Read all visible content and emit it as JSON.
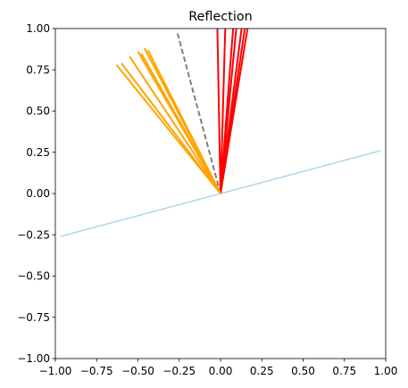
{
  "chart_data": {
    "type": "line",
    "title": "Reflection",
    "xlabel": "",
    "ylabel": "",
    "xlim": [
      -1.0,
      1.0
    ],
    "ylim": [
      -1.0,
      1.0
    ],
    "x_ticks": [
      -1.0,
      -0.75,
      -0.5,
      -0.25,
      0.0,
      0.25,
      0.5,
      0.75,
      1.0
    ],
    "y_ticks": [
      -1.0,
      -0.75,
      -0.5,
      -0.25,
      0.0,
      0.25,
      0.5,
      0.75,
      1.0
    ],
    "x_tick_labels": [
      "−1.00",
      "−0.75",
      "−0.50",
      "−0.25",
      "0.00",
      "0.25",
      "0.50",
      "0.75",
      "1.00"
    ],
    "y_tick_labels": [
      "−1.00",
      "−0.75",
      "−0.50",
      "−0.25",
      "0.00",
      "0.25",
      "0.50",
      "0.75",
      "1.00"
    ],
    "grid": false,
    "legend": false,
    "series": [
      {
        "role": "mirror",
        "color": "#add8e6",
        "dash": "solid",
        "segments": [
          {
            "x": [
              -0.97,
              0.97
            ],
            "y": [
              -0.26,
              0.26
            ]
          }
        ]
      },
      {
        "role": "normal",
        "color": "#808080",
        "dash": "dashed",
        "segments": [
          {
            "x": [
              0.0,
              -0.26
            ],
            "y": [
              0.0,
              0.97
            ]
          }
        ]
      },
      {
        "role": "incident",
        "color": "#ff0000",
        "dash": "solid",
        "segments": [
          {
            "x": [
              0.0,
              -0.02
            ],
            "y": [
              0.0,
              1.05
            ]
          },
          {
            "x": [
              0.0,
              0.03
            ],
            "y": [
              0.0,
              1.05
            ]
          },
          {
            "x": [
              0.0,
              0.08
            ],
            "y": [
              0.0,
              1.05
            ]
          },
          {
            "x": [
              0.0,
              0.13
            ],
            "y": [
              0.0,
              1.02
            ]
          },
          {
            "x": [
              0.0,
              0.15
            ],
            "y": [
              0.0,
              1.02
            ]
          },
          {
            "x": [
              0.0,
              0.17
            ],
            "y": [
              0.0,
              1.04
            ]
          },
          {
            "x": [
              0.0,
              0.1
            ],
            "y": [
              0.0,
              1.05
            ]
          }
        ]
      },
      {
        "role": "reflected",
        "color": "#ffa500",
        "dash": "solid",
        "segments": [
          {
            "x": [
              0.0,
              -0.63
            ],
            "y": [
              0.0,
              0.78
            ]
          },
          {
            "x": [
              0.0,
              -0.6
            ],
            "y": [
              0.0,
              0.79
            ]
          },
          {
            "x": [
              0.0,
              -0.55
            ],
            "y": [
              0.0,
              0.83
            ]
          },
          {
            "x": [
              0.0,
              -0.5
            ],
            "y": [
              0.0,
              0.86
            ]
          },
          {
            "x": [
              0.0,
              -0.48
            ],
            "y": [
              0.0,
              0.85
            ]
          },
          {
            "x": [
              0.0,
              -0.46
            ],
            "y": [
              0.0,
              0.88
            ]
          },
          {
            "x": [
              0.0,
              -0.44
            ],
            "y": [
              0.0,
              0.87
            ]
          }
        ]
      }
    ]
  }
}
